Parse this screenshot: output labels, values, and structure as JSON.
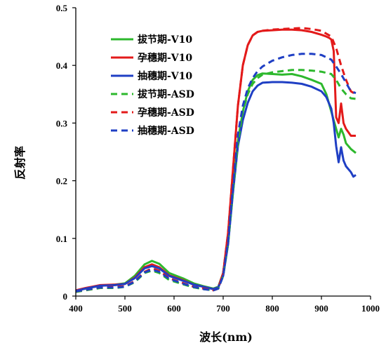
{
  "chart_data": {
    "type": "line",
    "title": "",
    "xlabel": "波长(nm)",
    "ylabel": "反射率",
    "xlim": [
      400,
      1000
    ],
    "ylim": [
      0,
      0.5
    ],
    "x_ticks": [
      400,
      500,
      600,
      700,
      800,
      900,
      1000
    ],
    "y_ticks": [
      0,
      0.1,
      0.2,
      0.3,
      0.4,
      0.5
    ],
    "x_tick_labels": [
      "400",
      "500",
      "600",
      "700",
      "800",
      "900",
      "1000"
    ],
    "y_tick_labels": [
      "0",
      "0.1",
      "0.2",
      "0.3",
      "0.4",
      "0.5"
    ],
    "grid": false,
    "legend_position": "top-left",
    "series": [
      {
        "name": "拔节期-V10",
        "color": "#2db82d",
        "dash": "solid",
        "x": [
          400,
          420,
          450,
          480,
          500,
          520,
          540,
          555,
          570,
          590,
          620,
          640,
          660,
          680,
          690,
          700,
          710,
          720,
          730,
          740,
          750,
          760,
          770,
          780,
          800,
          820,
          840,
          860,
          880,
          900,
          910,
          920,
          930,
          935,
          940,
          945,
          950,
          960,
          970
        ],
        "y": [
          0.009,
          0.013,
          0.018,
          0.02,
          0.022,
          0.035,
          0.055,
          0.061,
          0.056,
          0.04,
          0.03,
          0.022,
          0.017,
          0.013,
          0.016,
          0.04,
          0.1,
          0.19,
          0.27,
          0.32,
          0.355,
          0.375,
          0.383,
          0.386,
          0.385,
          0.384,
          0.385,
          0.381,
          0.375,
          0.368,
          0.35,
          0.32,
          0.29,
          0.275,
          0.29,
          0.28,
          0.265,
          0.255,
          0.248
        ]
      },
      {
        "name": "孕穗期-V10",
        "color": "#e31a1a",
        "dash": "solid",
        "x": [
          400,
          420,
          450,
          480,
          500,
          520,
          540,
          555,
          570,
          590,
          620,
          640,
          660,
          680,
          690,
          700,
          710,
          720,
          730,
          740,
          750,
          760,
          770,
          780,
          800,
          820,
          840,
          860,
          880,
          900,
          910,
          915,
          920,
          925,
          930,
          935,
          940,
          945,
          950,
          960,
          970
        ],
        "y": [
          0.01,
          0.014,
          0.019,
          0.02,
          0.021,
          0.032,
          0.05,
          0.055,
          0.05,
          0.036,
          0.027,
          0.02,
          0.016,
          0.012,
          0.015,
          0.04,
          0.11,
          0.22,
          0.33,
          0.4,
          0.435,
          0.452,
          0.458,
          0.46,
          0.461,
          0.462,
          0.462,
          0.461,
          0.458,
          0.453,
          0.45,
          0.448,
          0.445,
          0.425,
          0.31,
          0.3,
          0.334,
          0.3,
          0.29,
          0.278,
          0.278
        ]
      },
      {
        "name": "抽穗期-V10",
        "color": "#1f3fc4",
        "dash": "solid",
        "x": [
          400,
          420,
          450,
          480,
          500,
          520,
          540,
          555,
          570,
          590,
          620,
          640,
          660,
          680,
          690,
          700,
          710,
          720,
          730,
          740,
          750,
          760,
          770,
          780,
          800,
          820,
          840,
          860,
          880,
          900,
          910,
          920,
          925,
          930,
          935,
          940,
          945,
          950,
          960,
          965,
          970
        ],
        "y": [
          0.009,
          0.013,
          0.018,
          0.019,
          0.021,
          0.031,
          0.048,
          0.052,
          0.048,
          0.035,
          0.026,
          0.02,
          0.016,
          0.012,
          0.015,
          0.035,
          0.09,
          0.18,
          0.26,
          0.305,
          0.335,
          0.355,
          0.365,
          0.37,
          0.371,
          0.371,
          0.37,
          0.368,
          0.363,
          0.355,
          0.345,
          0.325,
          0.3,
          0.26,
          0.232,
          0.258,
          0.235,
          0.225,
          0.215,
          0.207,
          0.21
        ]
      },
      {
        "name": "拔节期-ASD",
        "color": "#2db82d",
        "dash": "dashed",
        "x": [
          400,
          420,
          450,
          480,
          500,
          520,
          540,
          555,
          570,
          590,
          620,
          640,
          660,
          680,
          690,
          700,
          710,
          720,
          730,
          740,
          750,
          760,
          770,
          780,
          800,
          820,
          840,
          860,
          880,
          900,
          920,
          930,
          940,
          950,
          960,
          970
        ],
        "y": [
          0.007,
          0.01,
          0.014,
          0.014,
          0.016,
          0.024,
          0.04,
          0.044,
          0.04,
          0.028,
          0.02,
          0.015,
          0.012,
          0.01,
          0.013,
          0.035,
          0.09,
          0.18,
          0.265,
          0.32,
          0.35,
          0.368,
          0.378,
          0.384,
          0.388,
          0.39,
          0.392,
          0.392,
          0.391,
          0.389,
          0.385,
          0.375,
          0.36,
          0.35,
          0.343,
          0.342
        ]
      },
      {
        "name": "孕穗期-ASD",
        "color": "#e31a1a",
        "dash": "dashed",
        "x": [
          400,
          420,
          450,
          480,
          500,
          520,
          540,
          555,
          570,
          590,
          620,
          640,
          660,
          680,
          690,
          700,
          710,
          720,
          730,
          740,
          750,
          760,
          770,
          780,
          800,
          820,
          840,
          860,
          880,
          900,
          920,
          930,
          940,
          950,
          960,
          970
        ],
        "y": [
          0.008,
          0.011,
          0.015,
          0.016,
          0.017,
          0.026,
          0.042,
          0.048,
          0.044,
          0.031,
          0.022,
          0.016,
          0.013,
          0.01,
          0.013,
          0.04,
          0.11,
          0.22,
          0.33,
          0.4,
          0.435,
          0.452,
          0.458,
          0.46,
          0.462,
          0.463,
          0.464,
          0.465,
          0.463,
          0.46,
          0.45,
          0.43,
          0.4,
          0.375,
          0.355,
          0.35
        ]
      },
      {
        "name": "抽穗期-ASD",
        "color": "#1f3fc4",
        "dash": "dashed",
        "x": [
          400,
          420,
          450,
          480,
          500,
          520,
          540,
          555,
          570,
          590,
          620,
          640,
          660,
          680,
          690,
          700,
          710,
          720,
          730,
          740,
          750,
          760,
          770,
          780,
          800,
          820,
          840,
          860,
          880,
          900,
          920,
          930,
          940,
          950,
          960,
          970
        ],
        "y": [
          0.008,
          0.011,
          0.015,
          0.015,
          0.016,
          0.025,
          0.041,
          0.046,
          0.042,
          0.03,
          0.021,
          0.016,
          0.012,
          0.01,
          0.013,
          0.035,
          0.095,
          0.19,
          0.28,
          0.33,
          0.36,
          0.378,
          0.39,
          0.398,
          0.408,
          0.414,
          0.418,
          0.42,
          0.42,
          0.418,
          0.41,
          0.398,
          0.385,
          0.37,
          0.355,
          0.352
        ]
      }
    ]
  }
}
